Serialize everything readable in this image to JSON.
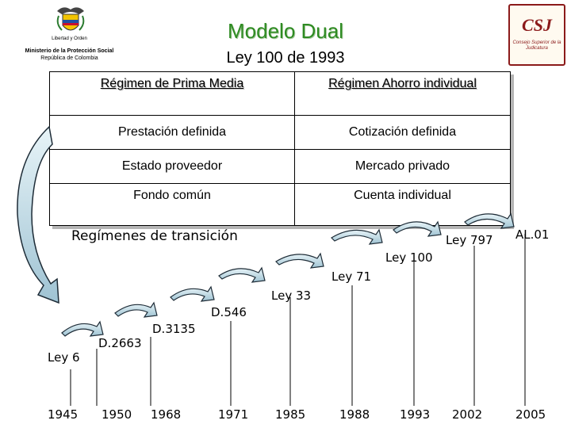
{
  "header": {
    "title": "Modelo Dual",
    "subtitle": "Ley 100 de 1993"
  },
  "logo_left": {
    "motto": "Libertad y Orden",
    "line1": "Ministerio de la Protección Social",
    "line2": "República de Colombia",
    "icon": "coat-of-arms-icon"
  },
  "logo_right": {
    "mark": "CSJ",
    "sub": "Consejo Superior de la Judicatura",
    "icon": "csj-logo-icon"
  },
  "table": {
    "headers": [
      "Régimen de Prima Media",
      "Régimen Ahorro individual"
    ],
    "rows": [
      [
        "Prestación definida",
        "Cotización definida"
      ],
      [
        "Estado proveedor",
        "Mercado privado"
      ],
      [
        "Fondo común",
        "Cuenta individual"
      ]
    ]
  },
  "timeline": {
    "heading": "Regímenes de transición",
    "events": [
      "Ley 6",
      "D.2663",
      "D.3135",
      "D.546",
      "Ley 33",
      "Ley 71",
      "Ley 100",
      "Ley 797",
      "AL.01"
    ],
    "years": [
      "1945",
      "1950",
      "1968",
      "1971",
      "1985",
      "1988",
      "1993",
      "2002",
      "2005"
    ]
  },
  "colors": {
    "title": "#2e8b22",
    "arrow_fill": "#cfe6ef",
    "arrow_stroke": "#1d2b36"
  }
}
